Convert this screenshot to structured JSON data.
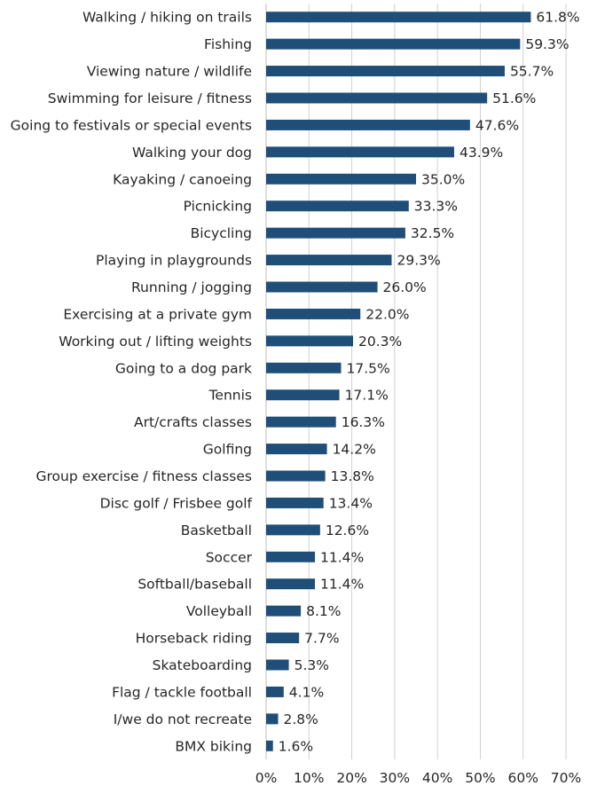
{
  "chart_data": {
    "type": "bar",
    "orientation": "horizontal",
    "categories": [
      "Walking / hiking on trails",
      "Fishing",
      "Viewing nature / wildlife",
      "Swimming for leisure / fitness",
      "Going to festivals or special events",
      "Walking your dog",
      "Kayaking / canoeing",
      "Picnicking",
      "Bicycling",
      "Playing in playgrounds",
      "Running / jogging",
      "Exercising at a private gym",
      "Working out / lifting weights",
      "Going to a dog park",
      "Tennis",
      "Art/crafts classes",
      "Golfing",
      "Group exercise / fitness classes",
      "Disc golf / Frisbee golf",
      "Basketball",
      "Soccer",
      "Softball/baseball",
      "Volleyball",
      "Horseback riding",
      "Skateboarding",
      "Flag / tackle football",
      "I/we do not recreate",
      "BMX biking"
    ],
    "values": [
      61.8,
      59.3,
      55.7,
      51.6,
      47.6,
      43.9,
      35.0,
      33.3,
      32.5,
      29.3,
      26.0,
      22.0,
      20.3,
      17.5,
      17.1,
      16.3,
      14.2,
      13.8,
      13.4,
      12.6,
      11.4,
      11.4,
      8.1,
      7.7,
      5.3,
      4.1,
      2.8,
      1.6
    ],
    "value_labels": [
      "61.8%",
      "59.3%",
      "55.7%",
      "51.6%",
      "47.6%",
      "43.9%",
      "35.0%",
      "33.3%",
      "32.5%",
      "29.3%",
      "26.0%",
      "22.0%",
      "20.3%",
      "17.5%",
      "17.1%",
      "16.3%",
      "14.2%",
      "13.8%",
      "13.4%",
      "12.6%",
      "11.4%",
      "11.4%",
      "8.1%",
      "7.7%",
      "5.3%",
      "4.1%",
      "2.8%",
      "1.6%"
    ],
    "xticks": [
      0,
      10,
      20,
      30,
      40,
      50,
      60,
      70
    ],
    "xtick_labels": [
      "0%",
      "10%",
      "20%",
      "30%",
      "40%",
      "50%",
      "60%",
      "70%"
    ],
    "xlim": [
      0,
      70
    ],
    "grid": true,
    "bar_color": "#1f4e79",
    "title": "",
    "xlabel": "",
    "ylabel": ""
  }
}
